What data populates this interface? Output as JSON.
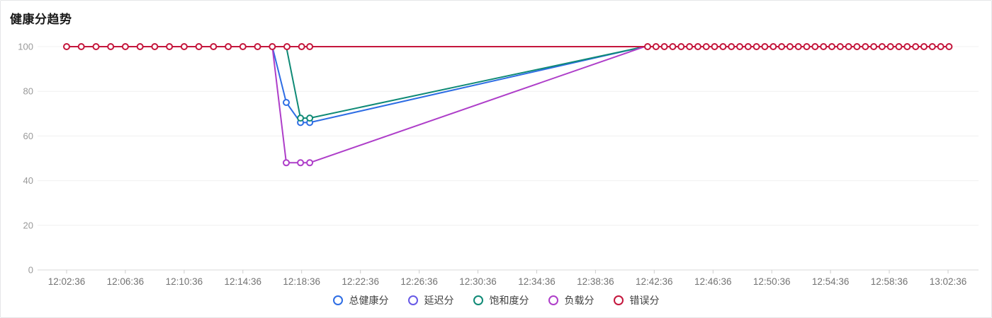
{
  "panel": {
    "title": "健康分趋势"
  },
  "chart_data": {
    "type": "line",
    "title": "健康分趋势",
    "x_axis": {
      "unit": "time",
      "tick_interval_minutes": 4,
      "tick_labels": [
        "12:02:36",
        "12:06:36",
        "12:10:36",
        "12:14:36",
        "12:18:36",
        "12:22:36",
        "12:26:36",
        "12:30:36",
        "12:34:36",
        "12:38:36",
        "12:42:36",
        "12:46:36",
        "12:50:36",
        "12:54:36",
        "12:58:36",
        "13:02:36"
      ]
    },
    "y_axis": {
      "ticks": [
        0,
        20,
        40,
        60,
        80,
        100
      ],
      "range": [
        0,
        100
      ]
    },
    "legend": {
      "position": "bottom",
      "items": [
        "总健康分",
        "延迟分",
        "饱和度分",
        "负载分",
        "错误分"
      ]
    },
    "t_unit": "minutes_after_12:02:36",
    "series": [
      {
        "id": "total-health",
        "name": "总健康分",
        "color": "#2e6de4",
        "points": [
          {
            "t": 14.0,
            "v": 100,
            "m": 0
          },
          {
            "t": 14.95,
            "v": 75,
            "m": 1
          },
          {
            "t": 15.92,
            "v": 66,
            "m": 1
          },
          {
            "t": 16.55,
            "v": 66,
            "m": 1
          },
          {
            "t": 39.35,
            "v": 100,
            "m": 0
          }
        ]
      },
      {
        "id": "latency",
        "name": "延迟分",
        "color": "#6759e6",
        "points": [
          {
            "t": -0.15,
            "v": 100,
            "m": 0
          },
          {
            "t": 60.1,
            "v": 100,
            "m": 0
          }
        ]
      },
      {
        "id": "saturation",
        "name": "饱和度分",
        "color": "#0f8a76",
        "points": [
          {
            "t": 14.95,
            "v": 100,
            "m": 0
          },
          {
            "t": 15.92,
            "v": 68,
            "m": 1
          },
          {
            "t": 16.55,
            "v": 68,
            "m": 1
          },
          {
            "t": 39.35,
            "v": 100,
            "m": 0
          }
        ]
      },
      {
        "id": "load",
        "name": "负载分",
        "color": "#ae3ec9",
        "points": [
          {
            "t": 14.0,
            "v": 100,
            "m": 0
          },
          {
            "t": 14.95,
            "v": 48,
            "m": 1
          },
          {
            "t": 15.92,
            "v": 48,
            "m": 1
          },
          {
            "t": 16.55,
            "v": 48,
            "m": 1
          },
          {
            "t": 39.35,
            "v": 100,
            "m": 0
          }
        ]
      },
      {
        "id": "error",
        "name": "错误分",
        "color": "#c4163c",
        "value": 100,
        "line_t": [
          -0.15,
          60.1
        ],
        "marker_runs": [
          {
            "start": 0,
            "step": 1,
            "count": 17
          },
          {
            "start": 16.55,
            "step": 1,
            "count": 1
          },
          {
            "start": 39.55,
            "step": 0.57,
            "count": 37
          }
        ]
      }
    ]
  }
}
